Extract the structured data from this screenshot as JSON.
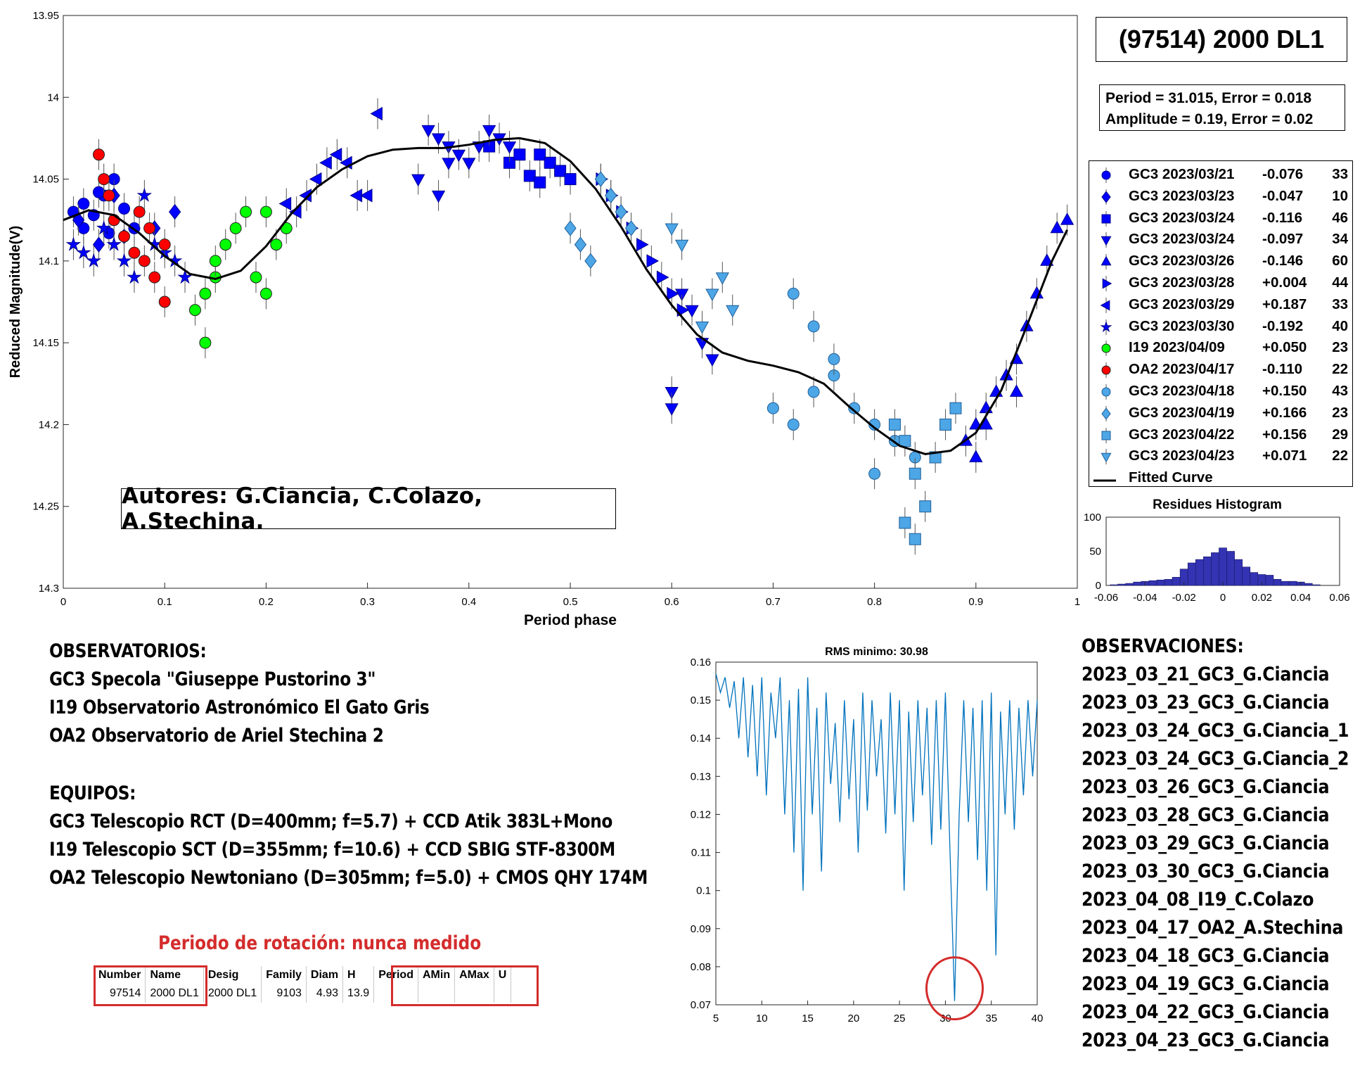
{
  "title": "(97514) 2000 DL1",
  "fit_info": {
    "line1": "Period =  31.015, Error = 0.018",
    "line2": "Amplitude = 0.19, Error = 0.02"
  },
  "authors": "Autores: G.Ciancia, C.Colazo, A.Stechina.",
  "legend": [
    {
      "label": "GC3 2023/03/21",
      "offset": "-0.076",
      "count": "33",
      "marker": "circle",
      "color": "#0000ff"
    },
    {
      "label": "GC3 2023/03/23",
      "offset": "-0.047",
      "count": "10",
      "marker": "diamond",
      "color": "#0000ff"
    },
    {
      "label": "GC3 2023/03/24",
      "offset": "-0.116",
      "count": "46",
      "marker": "square",
      "color": "#0000ff"
    },
    {
      "label": "GC3 2023/03/24",
      "offset": "-0.097",
      "count": "34",
      "marker": "triangle-down",
      "color": "#0000ff"
    },
    {
      "label": "GC3 2023/03/26",
      "offset": "-0.146",
      "count": "60",
      "marker": "triangle-up",
      "color": "#0000ff"
    },
    {
      "label": "GC3 2023/03/28",
      "offset": "+0.004",
      "count": "44",
      "marker": "triangle-right",
      "color": "#0000ff"
    },
    {
      "label": "GC3 2023/03/29",
      "offset": "+0.187",
      "count": "33",
      "marker": "triangle-left",
      "color": "#0000ff"
    },
    {
      "label": "GC3 2023/03/30",
      "offset": "-0.192",
      "count": "40",
      "marker": "star",
      "color": "#0000ff"
    },
    {
      "label": "I19 2023/04/09",
      "offset": "+0.050",
      "count": "23",
      "marker": "circle",
      "color": "#00ff00"
    },
    {
      "label": "OA2 2023/04/17",
      "offset": "-0.110",
      "count": "22",
      "marker": "circle",
      "color": "#ff0000"
    },
    {
      "label": "GC3 2023/04/18",
      "offset": "+0.150",
      "count": "43",
      "marker": "circle",
      "color": "#4da6e6"
    },
    {
      "label": "GC3 2023/04/19",
      "offset": "+0.166",
      "count": "23",
      "marker": "diamond",
      "color": "#4da6e6"
    },
    {
      "label": "GC3 2023/04/22",
      "offset": "+0.156",
      "count": "29",
      "marker": "square",
      "color": "#4da6e6"
    },
    {
      "label": "GC3 2023/04/23",
      "offset": "+0.071",
      "count": "22",
      "marker": "triangle-down",
      "color": "#4da6e6"
    },
    {
      "label": "Fitted Curve",
      "offset": "",
      "count": "",
      "marker": "line",
      "color": "#000000"
    }
  ],
  "observatorios": {
    "heading": "OBSERVATORIOS:",
    "lines": [
      "GC3 Specola \"Giuseppe Pustorino 3\"",
      "I19 Observatorio Astronómico El Gato Gris",
      "OA2 Observatorio de Ariel Stechina 2"
    ]
  },
  "equipos": {
    "heading": "EQUIPOS:",
    "lines": [
      "GC3 Telescopio RCT (D=400mm; f=5.7) + CCD Atik 383L+Mono",
      "I19 Telescopio SCT (D=355mm; f=10.6) + CCD SBIG STF-8300M",
      "OA2 Telescopio Newtoniano (D=305mm; f=5.0) + CMOS QHY 174M"
    ]
  },
  "observaciones": {
    "heading": "OBSERVACIONES:",
    "lines": [
      "2023_03_21_GC3_G.Ciancia",
      "2023_03_23_GC3_G.Ciancia",
      "2023_03_24_GC3_G.Ciancia_1",
      "2023_03_24_GC3_G.Ciancia_2",
      "2023_03_26_GC3_G.Ciancia",
      "2023_03_28_GC3_G.Ciancia",
      "2023_03_29_GC3_G.Ciancia",
      "2023_03_30_GC3_G.Ciancia",
      "2023_04_08_I19_C.Colazo",
      "2023_04_17_OA2_A.Stechina",
      "2023_04_18_GC3_G.Ciancia",
      "2023_04_19_GC3_G.Ciancia",
      "2023_04_22_GC3_G.Ciancia",
      "2023_04_23_GC3_G.Ciancia"
    ]
  },
  "rotation": {
    "title": "Periodo de rotación: nunca medido",
    "headers": [
      "Number",
      "Name",
      "Desig",
      "Family",
      "Diam",
      "H",
      "Period",
      "AMin",
      "AMax",
      "U"
    ],
    "values": [
      "97514",
      "2000 DL1",
      "2000 DL1",
      "9103",
      "4.93",
      "13.9",
      "",
      "",
      "",
      ""
    ]
  },
  "colors": {
    "blue": "#0000ff",
    "light_blue": "#4da6e6",
    "green": "#00ff00",
    "red": "#ff0000",
    "histogram_bar": "#3333b3",
    "periodogram_line": "#0072bd",
    "highlight_red": "#d42c2c"
  },
  "chart_data": [
    {
      "type": "scatter",
      "xlabel": "Period phase",
      "ylabel": "Reduced Magnitude(V)",
      "xlim": [
        0,
        1
      ],
      "ylim": [
        13.95,
        14.3
      ],
      "y_reversed": true,
      "x_ticks": [
        "0",
        "0.1",
        "0.2",
        "0.3",
        "0.4",
        "0.5",
        "0.6",
        "0.7",
        "0.8",
        "0.9",
        "1"
      ],
      "y_ticks": [
        "13.95",
        "14",
        "14.05",
        "14.1",
        "14.15",
        "14.2",
        "14.25",
        "14.3"
      ],
      "fitted_curve": {
        "name": "Fitted Curve",
        "x": [
          0,
          0.025,
          0.05,
          0.075,
          0.1,
          0.125,
          0.15,
          0.175,
          0.2,
          0.225,
          0.25,
          0.275,
          0.3,
          0.325,
          0.35,
          0.375,
          0.4,
          0.425,
          0.45,
          0.475,
          0.5,
          0.525,
          0.55,
          0.575,
          0.6,
          0.625,
          0.65,
          0.675,
          0.7,
          0.725,
          0.75,
          0.775,
          0.8,
          0.825,
          0.85,
          0.875,
          0.9,
          0.925,
          0.95,
          0.975,
          0.99
        ],
        "y": [
          14.075,
          14.069,
          14.072,
          14.083,
          14.097,
          14.108,
          14.111,
          14.106,
          14.091,
          14.071,
          14.055,
          14.044,
          14.036,
          14.032,
          14.031,
          14.031,
          14.029,
          14.026,
          14.025,
          14.028,
          14.039,
          14.056,
          14.079,
          14.105,
          14.127,
          14.145,
          14.156,
          14.161,
          14.164,
          14.168,
          14.175,
          14.189,
          14.202,
          14.213,
          14.218,
          14.216,
          14.205,
          14.179,
          14.14,
          14.1,
          14.081
        ]
      },
      "points": [
        {
          "series": 0,
          "x": [
            0.01,
            0.02,
            0.03,
            0.04,
            0.05,
            0.06,
            0.07,
            0.02,
            0.035,
            0.045
          ],
          "y": [
            14.07,
            14.065,
            14.072,
            14.06,
            14.05,
            14.068,
            14.08,
            14.08,
            14.058,
            14.083
          ]
        },
        {
          "series": 1,
          "x": [
            0.035,
            0.06,
            0.09,
            0.11,
            0.015,
            0.05
          ],
          "y": [
            14.09,
            14.085,
            14.08,
            14.07,
            14.075,
            14.06
          ]
        },
        {
          "series": 2,
          "x": [
            0.47,
            0.48,
            0.49,
            0.5,
            0.46,
            0.47,
            0.44,
            0.45,
            0.42
          ],
          "y": [
            14.035,
            14.04,
            14.045,
            14.05,
            14.048,
            14.052,
            14.04,
            14.035,
            14.03
          ]
        },
        {
          "series": 3,
          "x": [
            0.36,
            0.37,
            0.38,
            0.39,
            0.4,
            0.41,
            0.42,
            0.43,
            0.44,
            0.35,
            0.37,
            0.38,
            0.61,
            0.62,
            0.63,
            0.64,
            0.6,
            0.6
          ],
          "y": [
            14.02,
            14.025,
            14.03,
            14.035,
            14.04,
            14.03,
            14.02,
            14.025,
            14.03,
            14.05,
            14.06,
            14.04,
            14.12,
            14.13,
            14.15,
            14.16,
            14.18,
            14.19
          ]
        },
        {
          "series": 4,
          "x": [
            0.89,
            0.9,
            0.91,
            0.92,
            0.93,
            0.94,
            0.95,
            0.96,
            0.97,
            0.98,
            0.99,
            0.9,
            0.91,
            0.94
          ],
          "y": [
            14.21,
            14.2,
            14.19,
            14.18,
            14.17,
            14.16,
            14.14,
            14.12,
            14.1,
            14.08,
            14.075,
            14.22,
            14.2,
            14.18
          ]
        },
        {
          "series": 5,
          "x": [
            0.55,
            0.56,
            0.57,
            0.58,
            0.59,
            0.6,
            0.61,
            0.54,
            0.53
          ],
          "y": [
            14.07,
            14.08,
            14.09,
            14.1,
            14.11,
            14.12,
            14.13,
            14.06,
            14.05
          ]
        },
        {
          "series": 6,
          "x": [
            0.24,
            0.25,
            0.26,
            0.27,
            0.28,
            0.29,
            0.3,
            0.31,
            0.23,
            0.22
          ],
          "y": [
            14.06,
            14.05,
            14.04,
            14.035,
            14.04,
            14.06,
            14.06,
            14.01,
            14.07,
            14.065
          ]
        },
        {
          "series": 7,
          "x": [
            0.01,
            0.02,
            0.03,
            0.04,
            0.05,
            0.06,
            0.07,
            0.08,
            0.09,
            0.1,
            0.11,
            0.12
          ],
          "y": [
            14.09,
            14.095,
            14.1,
            14.08,
            14.09,
            14.1,
            14.11,
            14.06,
            14.09,
            14.095,
            14.1,
            14.11
          ]
        },
        {
          "series": 8,
          "x": [
            0.13,
            0.14,
            0.15,
            0.16,
            0.17,
            0.18,
            0.19,
            0.2,
            0.21,
            0.22,
            0.14,
            0.15,
            0.2
          ],
          "y": [
            14.13,
            14.12,
            14.11,
            14.09,
            14.08,
            14.07,
            14.11,
            14.12,
            14.09,
            14.08,
            14.15,
            14.1,
            14.07
          ]
        },
        {
          "series": 9,
          "x": [
            0.035,
            0.04,
            0.045,
            0.05,
            0.06,
            0.07,
            0.08,
            0.09,
            0.1,
            0.085,
            0.075,
            0.1
          ],
          "y": [
            14.035,
            14.05,
            14.06,
            14.075,
            14.085,
            14.095,
            14.1,
            14.11,
            14.09,
            14.08,
            14.07,
            14.125
          ]
        },
        {
          "series": 10,
          "x": [
            0.7,
            0.72,
            0.74,
            0.76,
            0.78,
            0.8,
            0.82,
            0.84,
            0.72,
            0.74,
            0.76,
            0.8
          ],
          "y": [
            14.19,
            14.2,
            14.18,
            14.17,
            14.19,
            14.2,
            14.21,
            14.22,
            14.12,
            14.14,
            14.16,
            14.23
          ]
        },
        {
          "series": 11,
          "x": [
            0.5,
            0.51,
            0.52,
            0.53,
            0.54,
            0.55,
            0.56
          ],
          "y": [
            14.08,
            14.09,
            14.1,
            14.05,
            14.06,
            14.07,
            14.08
          ]
        },
        {
          "series": 12,
          "x": [
            0.82,
            0.83,
            0.84,
            0.85,
            0.86,
            0.87,
            0.88,
            0.83,
            0.84
          ],
          "y": [
            14.2,
            14.21,
            14.23,
            14.25,
            14.22,
            14.2,
            14.19,
            14.26,
            14.27
          ]
        },
        {
          "series": 13,
          "x": [
            0.63,
            0.64,
            0.65,
            0.66,
            0.6,
            0.61
          ],
          "y": [
            14.14,
            14.12,
            14.11,
            14.13,
            14.08,
            14.09
          ]
        }
      ]
    },
    {
      "type": "bar",
      "title": "Residues Histogram",
      "xlim": [
        -0.06,
        0.06
      ],
      "ylim": [
        0,
        100
      ],
      "x_ticks": [
        "-0.06",
        "-0.04",
        "-0.02",
        "0",
        "0.02",
        "0.04",
        "0.06"
      ],
      "y_ticks": [
        "0",
        "50",
        "100"
      ],
      "bin_centers": [
        -0.056,
        -0.052,
        -0.048,
        -0.044,
        -0.04,
        -0.036,
        -0.032,
        -0.028,
        -0.024,
        -0.02,
        -0.016,
        -0.012,
        -0.008,
        -0.004,
        0,
        0.004,
        0.008,
        0.012,
        0.016,
        0.02,
        0.024,
        0.028,
        0.032,
        0.036,
        0.04,
        0.044,
        0.048,
        0.052
      ],
      "values": [
        1,
        2,
        3,
        5,
        6,
        7,
        8,
        9,
        12,
        24,
        33,
        38,
        42,
        48,
        55,
        50,
        38,
        27,
        19,
        16,
        15,
        9,
        6,
        6,
        5,
        3,
        1,
        0
      ]
    },
    {
      "type": "line",
      "title": "RMS minimo: 30.98",
      "xlim": [
        5,
        40
      ],
      "ylim": [
        0.07,
        0.16
      ],
      "x_ticks": [
        "5",
        "10",
        "15",
        "20",
        "25",
        "30",
        "35",
        "40"
      ],
      "y_ticks": [
        "0.07",
        "0.08",
        "0.09",
        "0.1",
        "0.11",
        "0.12",
        "0.13",
        "0.14",
        "0.15",
        "0.16"
      ],
      "series": [
        {
          "x": [
            5,
            5.5,
            6,
            6.5,
            7,
            7.5,
            8,
            8.5,
            9,
            9.5,
            10,
            10.5,
            11,
            11.5,
            12,
            12.5,
            13,
            13.5,
            14,
            14.5,
            15,
            15.5,
            16,
            16.5,
            17,
            17.5,
            18,
            18.5,
            19,
            19.5,
            20,
            20.5,
            21,
            21.5,
            22,
            22.5,
            23,
            23.5,
            24,
            24.5,
            25,
            25.5,
            26,
            26.5,
            27,
            27.5,
            28,
            28.5,
            29,
            29.5,
            30,
            30.5,
            31,
            31.5,
            32,
            32.5,
            33,
            33.5,
            34,
            34.5,
            35,
            35.5,
            36,
            36.5,
            37,
            37.5,
            38,
            38.5,
            39,
            39.5,
            40
          ],
          "y": [
            0.157,
            0.152,
            0.156,
            0.148,
            0.155,
            0.14,
            0.156,
            0.135,
            0.154,
            0.13,
            0.156,
            0.125,
            0.152,
            0.14,
            0.156,
            0.12,
            0.15,
            0.11,
            0.153,
            0.1,
            0.156,
            0.12,
            0.148,
            0.105,
            0.152,
            0.128,
            0.144,
            0.118,
            0.15,
            0.124,
            0.145,
            0.11,
            0.152,
            0.121,
            0.15,
            0.13,
            0.145,
            0.115,
            0.152,
            0.12,
            0.15,
            0.1,
            0.147,
            0.118,
            0.15,
            0.125,
            0.148,
            0.112,
            0.15,
            0.116,
            0.152,
            0.11,
            0.071,
            0.12,
            0.15,
            0.118,
            0.148,
            0.108,
            0.15,
            0.1,
            0.152,
            0.083,
            0.147,
            0.12,
            0.15,
            0.116,
            0.148,
            0.125,
            0.15,
            0.13,
            0.15
          ],
          "min_marker": {
            "x": 31,
            "y": 0.071
          }
        }
      ]
    }
  ]
}
